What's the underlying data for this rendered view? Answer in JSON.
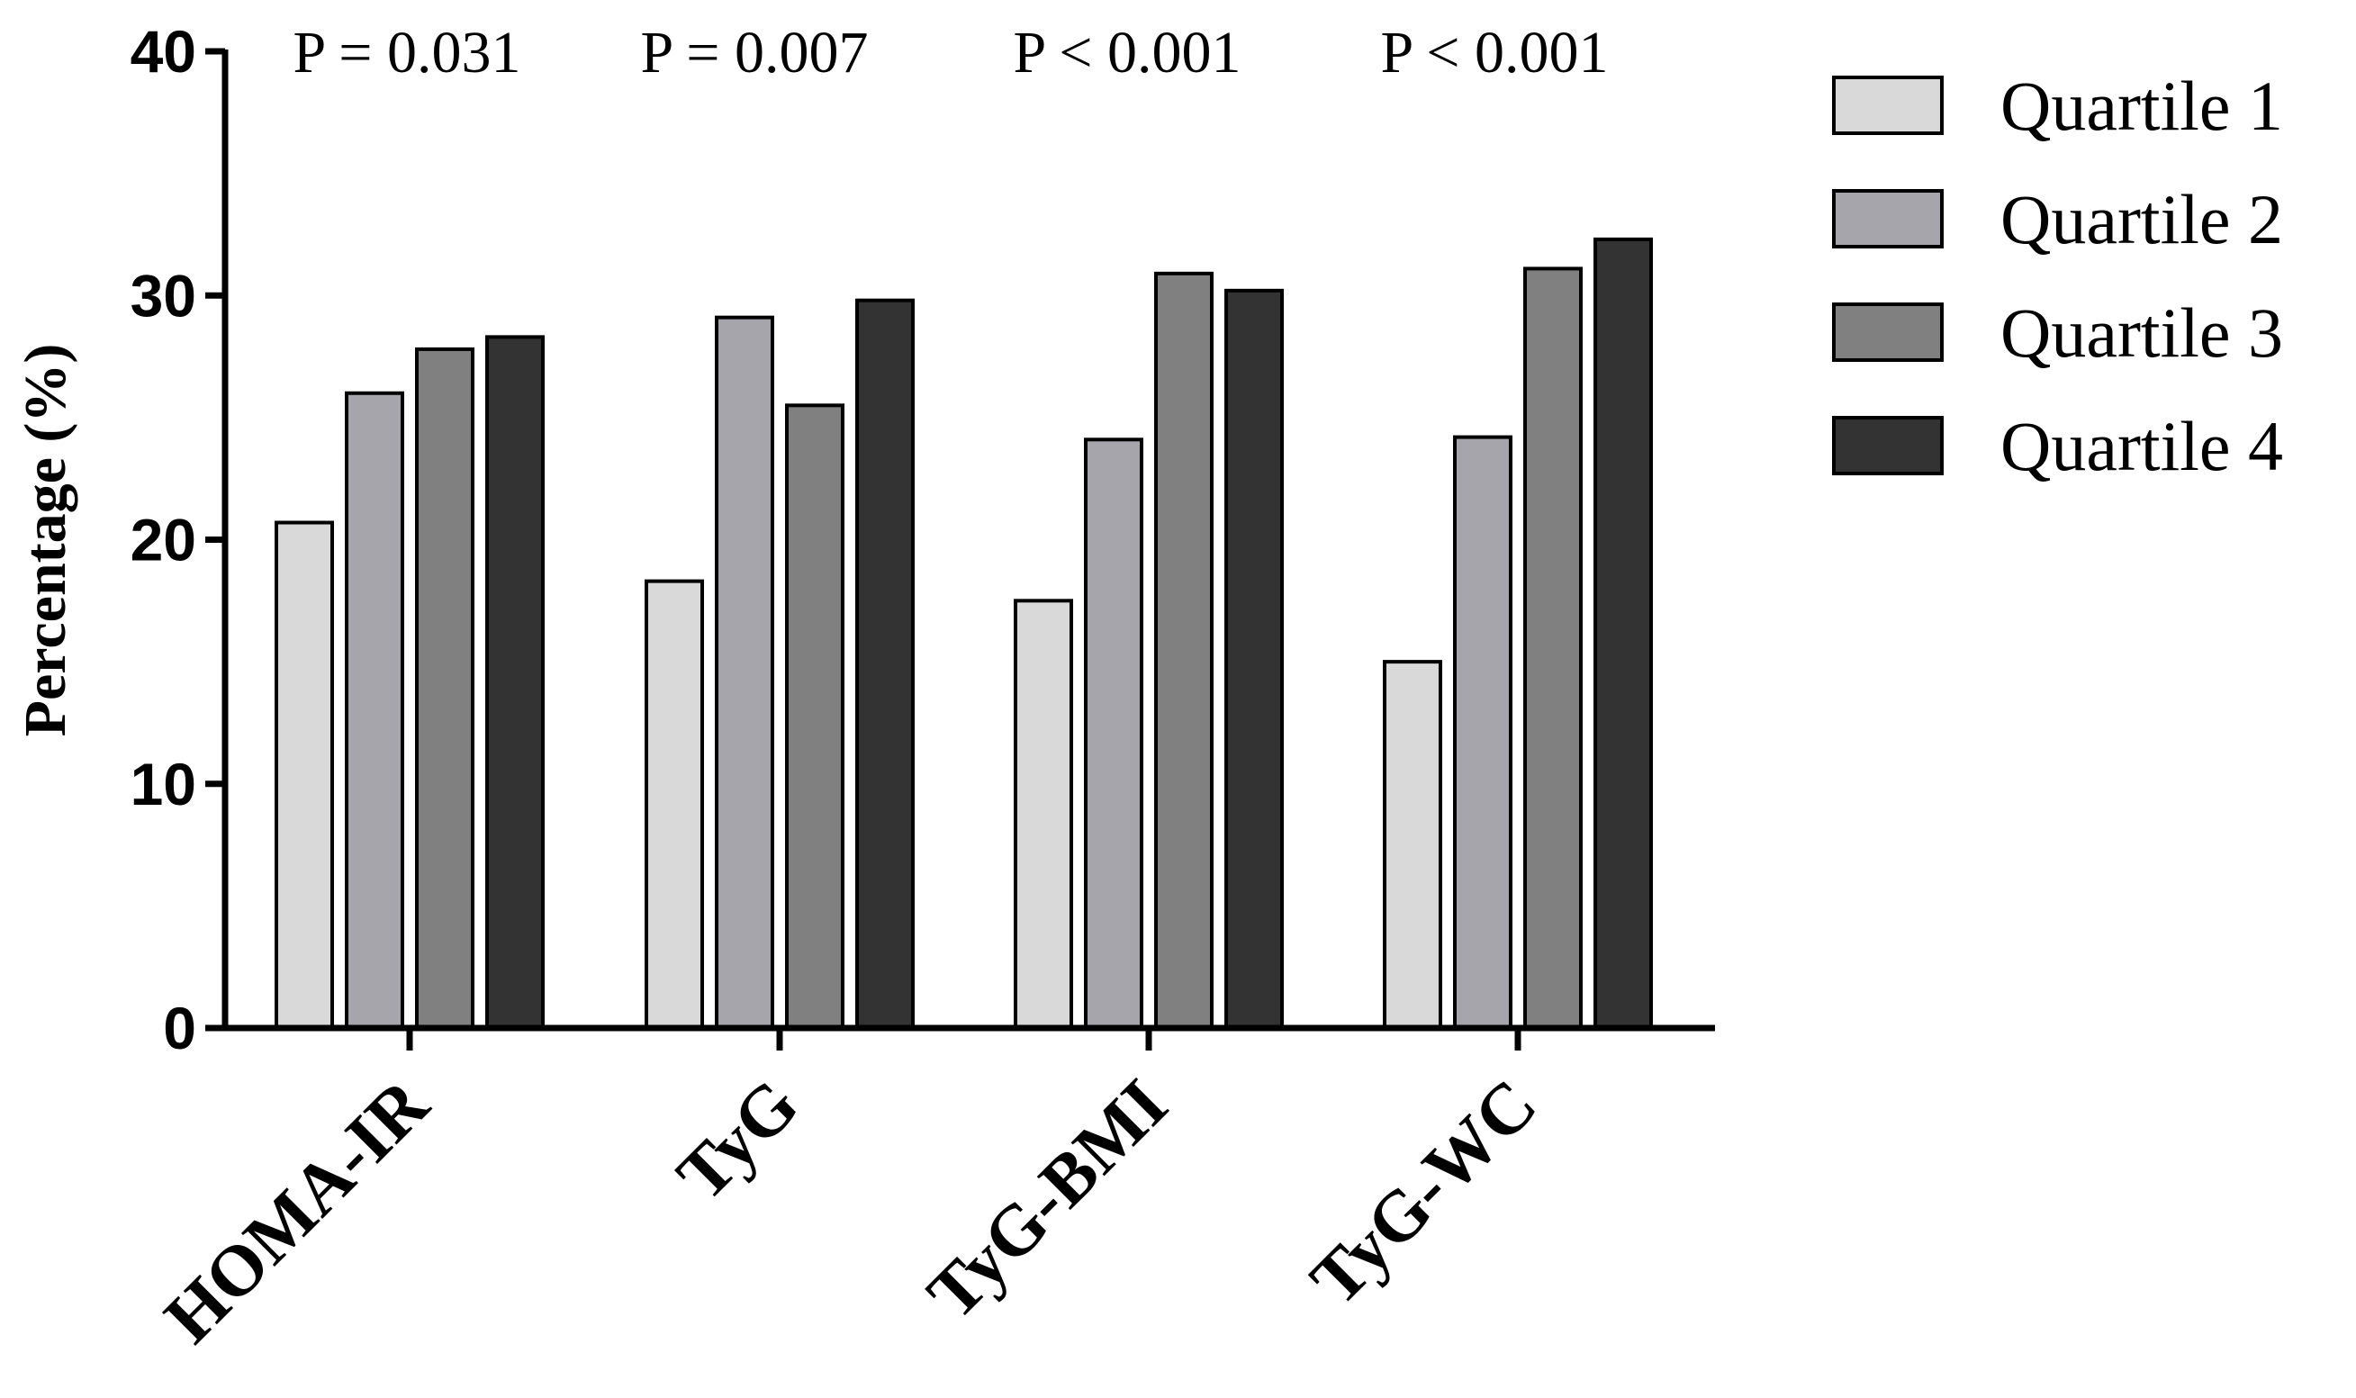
{
  "chart_data": {
    "type": "bar",
    "categories": [
      "HOMA-IR",
      "TyG",
      "TyG-BMI",
      "TyG-WC"
    ],
    "series": [
      {
        "name": "Quartile 1",
        "color": "#d9d9d9",
        "values": [
          20.7,
          18.3,
          17.5,
          15.0
        ]
      },
      {
        "name": "Quartile 2",
        "color": "#a6a5ab",
        "values": [
          26.0,
          29.1,
          24.1,
          24.2
        ]
      },
      {
        "name": "Quartile 3",
        "color": "#808080",
        "values": [
          27.8,
          25.5,
          30.9,
          31.1
        ]
      },
      {
        "name": "Quartile 4",
        "color": "#333333",
        "values": [
          28.3,
          29.8,
          30.2,
          32.3
        ]
      }
    ],
    "annotations": [
      "P = 0.031",
      "P = 0.007",
      "P < 0.001",
      "P < 0.001"
    ],
    "ylabel": "Percentage (%)",
    "xlabel": "",
    "ylim": [
      0,
      40
    ],
    "yticks": [
      0,
      10,
      20,
      30,
      40
    ],
    "grid": false,
    "legend_position": "top-right"
  }
}
